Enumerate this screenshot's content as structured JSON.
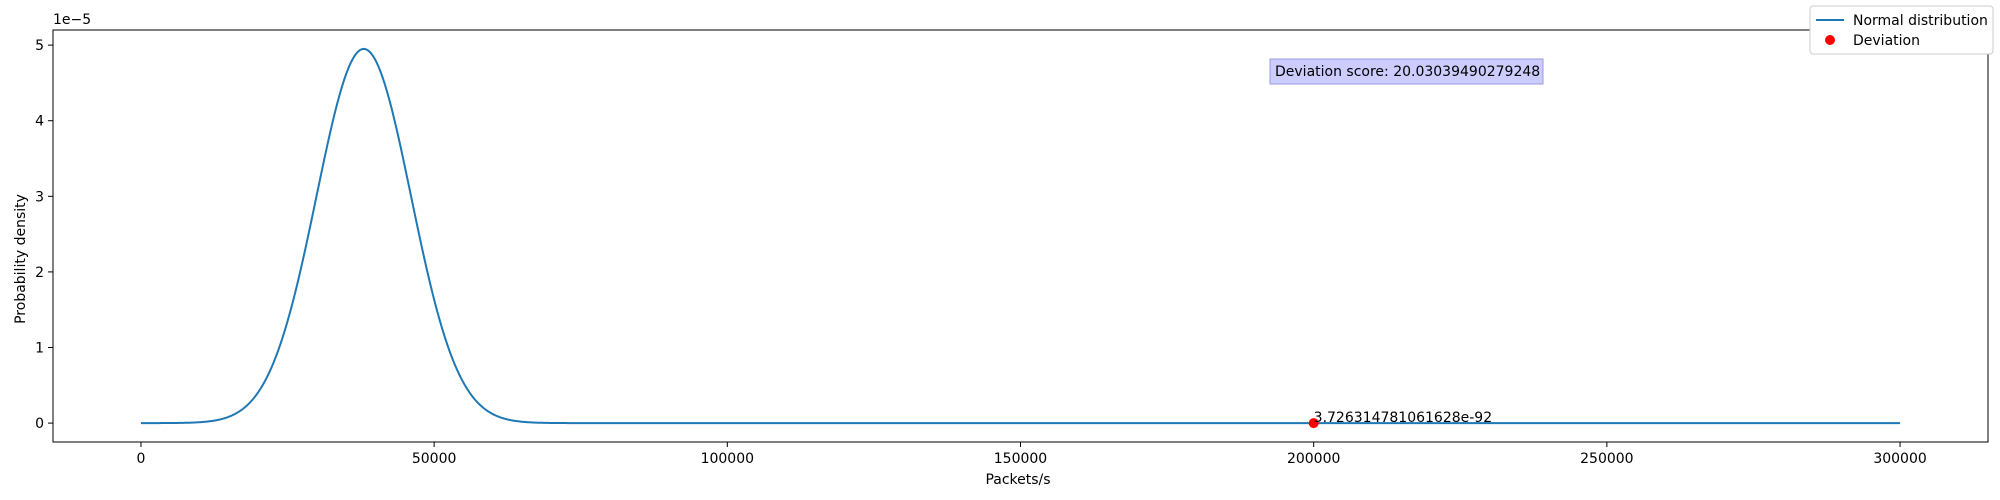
{
  "chart_data": {
    "type": "line",
    "title": "",
    "xlabel": "Packets/s",
    "ylabel": "Probability density",
    "y_offset_text": "1e−5",
    "xlim": [
      -15000,
      315000
    ],
    "ylim": [
      -0.25,
      5.2
    ],
    "y_scale_factor": 1e-05,
    "grid": false,
    "legend_placement": "top-right",
    "x_ticks": [
      0,
      50000,
      100000,
      150000,
      200000,
      250000,
      300000
    ],
    "x_tick_labels": [
      "0",
      "50000",
      "100000",
      "150000",
      "200000",
      "250000",
      "300000"
    ],
    "y_ticks": [
      0,
      1,
      2,
      3,
      4,
      5
    ],
    "y_tick_labels": [
      "0",
      "1",
      "2",
      "3",
      "4",
      "5"
    ],
    "series": [
      {
        "name": "Normal distribution",
        "kind": "line",
        "color": "#1f77b4",
        "x_range": [
          0,
          300000
        ],
        "peak_x": 38000,
        "peak_y": 4.95
      },
      {
        "name": "Deviation",
        "kind": "scatter",
        "color": "#ff0000",
        "points": [
          {
            "x": 200000,
            "y": 0
          }
        ]
      }
    ],
    "annotations": [
      {
        "text": "Deviation score: 20.03039490279248",
        "boxed": true,
        "box_color": "#ccccff"
      },
      {
        "text": "3.726314781061628e-92",
        "x": 200000,
        "y": 0
      }
    ]
  }
}
